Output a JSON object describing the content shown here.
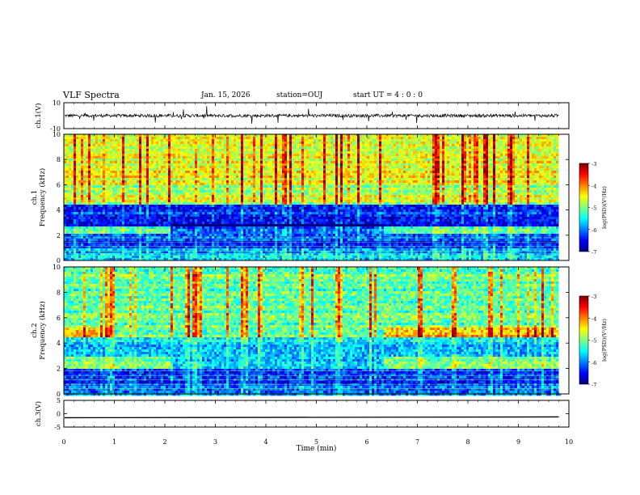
{
  "header": {
    "title": "VLF Spectra",
    "date": "Jan. 15, 2026",
    "station": "station=OUJ",
    "start": "start UT =  4 : 0  : 0"
  },
  "chart_data": [
    {
      "type": "line",
      "name": "ch1-waveform",
      "ylabel": "ch.1(V)",
      "ylim": [
        -10,
        10
      ],
      "yticks": [
        "10",
        "-10"
      ],
      "baseline": 0,
      "color": "#000000"
    },
    {
      "type": "heatmap",
      "name": "ch1-spectrogram",
      "ylabel": "ch.1\nFrequency (kHz)",
      "ylim": [
        0,
        10
      ],
      "yticks": [
        "0",
        "2",
        "4",
        "6",
        "8",
        "10"
      ],
      "xlim": [
        0,
        10
      ],
      "data_extent_min": 9.8,
      "colorbar": {
        "label": "log(PSD)(V²/Hz)",
        "range": [
          -7,
          -3
        ],
        "ticks": [
          "-3",
          "-4",
          "-5",
          "-6",
          "-7"
        ]
      },
      "bands": [
        {
          "f_min": 0,
          "f_max": 1,
          "level": -5.8
        },
        {
          "f_min": 1,
          "f_max": 2.3,
          "level": -6.3
        },
        {
          "f_min": 2.3,
          "f_max": 2.8,
          "level": -5.2
        },
        {
          "f_min": 2.8,
          "f_max": 4.5,
          "level": -6.4
        },
        {
          "f_min": 4.5,
          "f_max": 6,
          "level": -4.8
        },
        {
          "f_min": 6,
          "f_max": 10,
          "level": -4.6
        }
      ]
    },
    {
      "type": "heatmap",
      "name": "ch2-spectrogram",
      "ylabel": "ch.2\nFrequency (kHz)",
      "ylim": [
        0,
        10
      ],
      "yticks": [
        "0",
        "2",
        "4",
        "6",
        "8",
        "10"
      ],
      "xlim": [
        0,
        10
      ],
      "data_extent_min": 9.8,
      "colorbar": {
        "label": "log(PSD)(V²/Hz)",
        "range": [
          -7,
          -3
        ],
        "ticks": [
          "-3",
          "-4",
          "-5",
          "-6",
          "-7"
        ]
      },
      "bands": [
        {
          "f_min": 0,
          "f_max": 1,
          "level": -6.0
        },
        {
          "f_min": 1,
          "f_max": 2,
          "level": -6.4
        },
        {
          "f_min": 2,
          "f_max": 3,
          "level": -5.0
        },
        {
          "f_min": 3,
          "f_max": 4.6,
          "level": -5.7
        },
        {
          "f_min": 4.6,
          "f_max": 5.3,
          "level": -4.3
        },
        {
          "f_min": 5.3,
          "f_max": 10,
          "level": -5.1
        }
      ]
    },
    {
      "type": "line",
      "name": "ch3-waveform",
      "ylabel": "ch.3(V)",
      "ylim": [
        -5,
        5
      ],
      "yticks": [
        "5",
        "0",
        "-5"
      ],
      "baseline": -1.2,
      "color": "#000000"
    }
  ],
  "xaxis": {
    "label": "Time (min)",
    "ticks": [
      "0",
      "1",
      "2",
      "3",
      "4",
      "5",
      "6",
      "7",
      "8",
      "9",
      "10"
    ],
    "range": [
      0,
      10
    ]
  },
  "colors": {
    "colormap": [
      "#00007f",
      "#0000ff",
      "#007fff",
      "#00ffff",
      "#7fff7f",
      "#ffff00",
      "#ff7f00",
      "#ff0000",
      "#7f0000"
    ]
  }
}
